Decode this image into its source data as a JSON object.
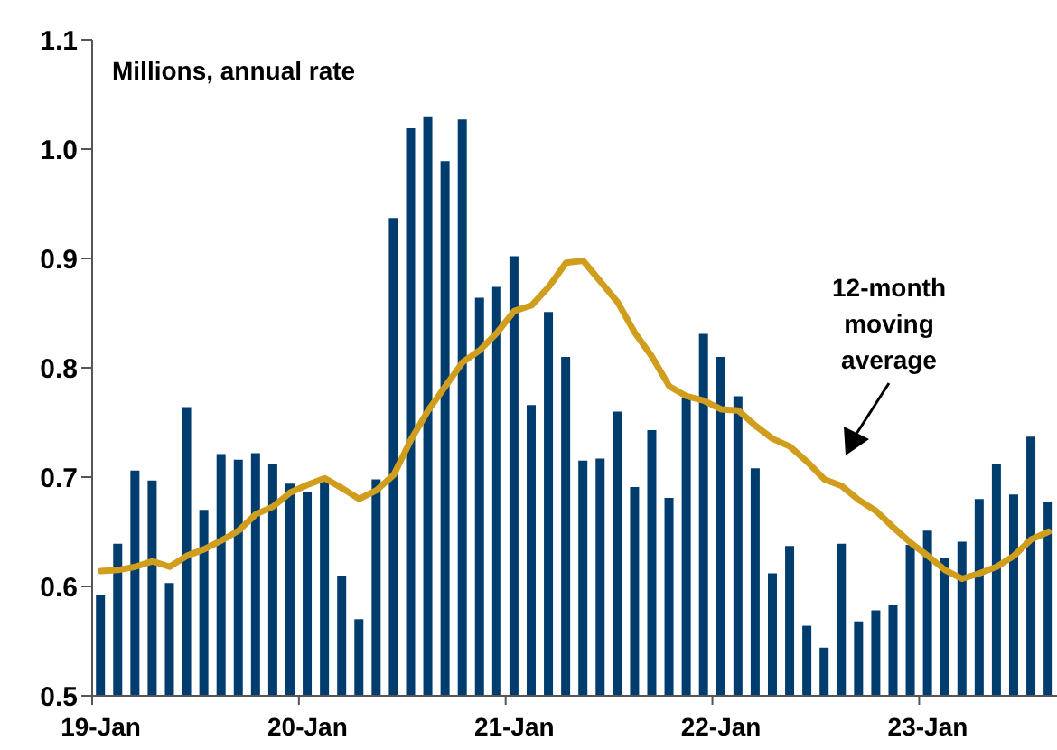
{
  "chart_data": {
    "type": "bar",
    "ylabel": "Millions, annual rate",
    "categories": [
      "19-Jan",
      null,
      null,
      null,
      null,
      null,
      null,
      null,
      null,
      null,
      null,
      null,
      "20-Jan",
      null,
      null,
      null,
      null,
      null,
      null,
      null,
      null,
      null,
      null,
      null,
      "21-Jan",
      null,
      null,
      null,
      null,
      null,
      null,
      null,
      null,
      null,
      null,
      null,
      "22-Jan",
      null,
      null,
      null,
      null,
      null,
      null,
      null,
      null,
      null,
      null,
      null,
      "23-Jan",
      null,
      null,
      null,
      null,
      null,
      null,
      null
    ],
    "series": [
      {
        "color": "#003d6e",
        "values": [
          0.592,
          0.639,
          0.706,
          0.697,
          0.603,
          0.764,
          0.67,
          0.721,
          0.716,
          0.722,
          0.712,
          0.694,
          0.686,
          0.697,
          0.61,
          0.57,
          0.698,
          0.937,
          1.019,
          1.03,
          0.989,
          1.027,
          0.864,
          0.874,
          0.902,
          0.766,
          0.851,
          0.81,
          0.715,
          0.717,
          0.76,
          0.691,
          0.743,
          0.681,
          0.772,
          0.831,
          0.81,
          0.774,
          0.708,
          0.612,
          0.637,
          0.564,
          0.544,
          0.639,
          0.568,
          0.578,
          0.583,
          0.638,
          0.651,
          0.626,
          0.641,
          0.68,
          0.712,
          0.684,
          0.737,
          0.677
        ]
      },
      {
        "type": "line",
        "color": "#d09e1c",
        "values": [
          0.614,
          0.615,
          0.618,
          0.623,
          0.618,
          0.628,
          0.634,
          0.642,
          0.651,
          0.666,
          0.673,
          0.686,
          0.693,
          0.699,
          0.69,
          0.68,
          0.688,
          0.702,
          0.734,
          0.761,
          0.783,
          0.805,
          0.816,
          0.832,
          0.852,
          0.857,
          0.874,
          0.896,
          0.898,
          0.879,
          0.86,
          0.832,
          0.81,
          0.783,
          0.774,
          0.77,
          0.762,
          0.761,
          0.747,
          0.735,
          0.728,
          0.714,
          0.698,
          0.692,
          0.679,
          0.669,
          0.654,
          0.64,
          0.628,
          0.615,
          0.607,
          0.612,
          0.618,
          0.628,
          0.643,
          0.65
        ]
      }
    ],
    "ylim": [
      0.5,
      1.1
    ],
    "yticks": [
      0.5,
      0.6,
      0.7,
      0.8,
      0.9,
      {
        "value": 1,
        "label": "1.0"
      },
      1.1
    ],
    "annotations": [
      "12-month moving average"
    ],
    "grid": false,
    "legend": false
  }
}
